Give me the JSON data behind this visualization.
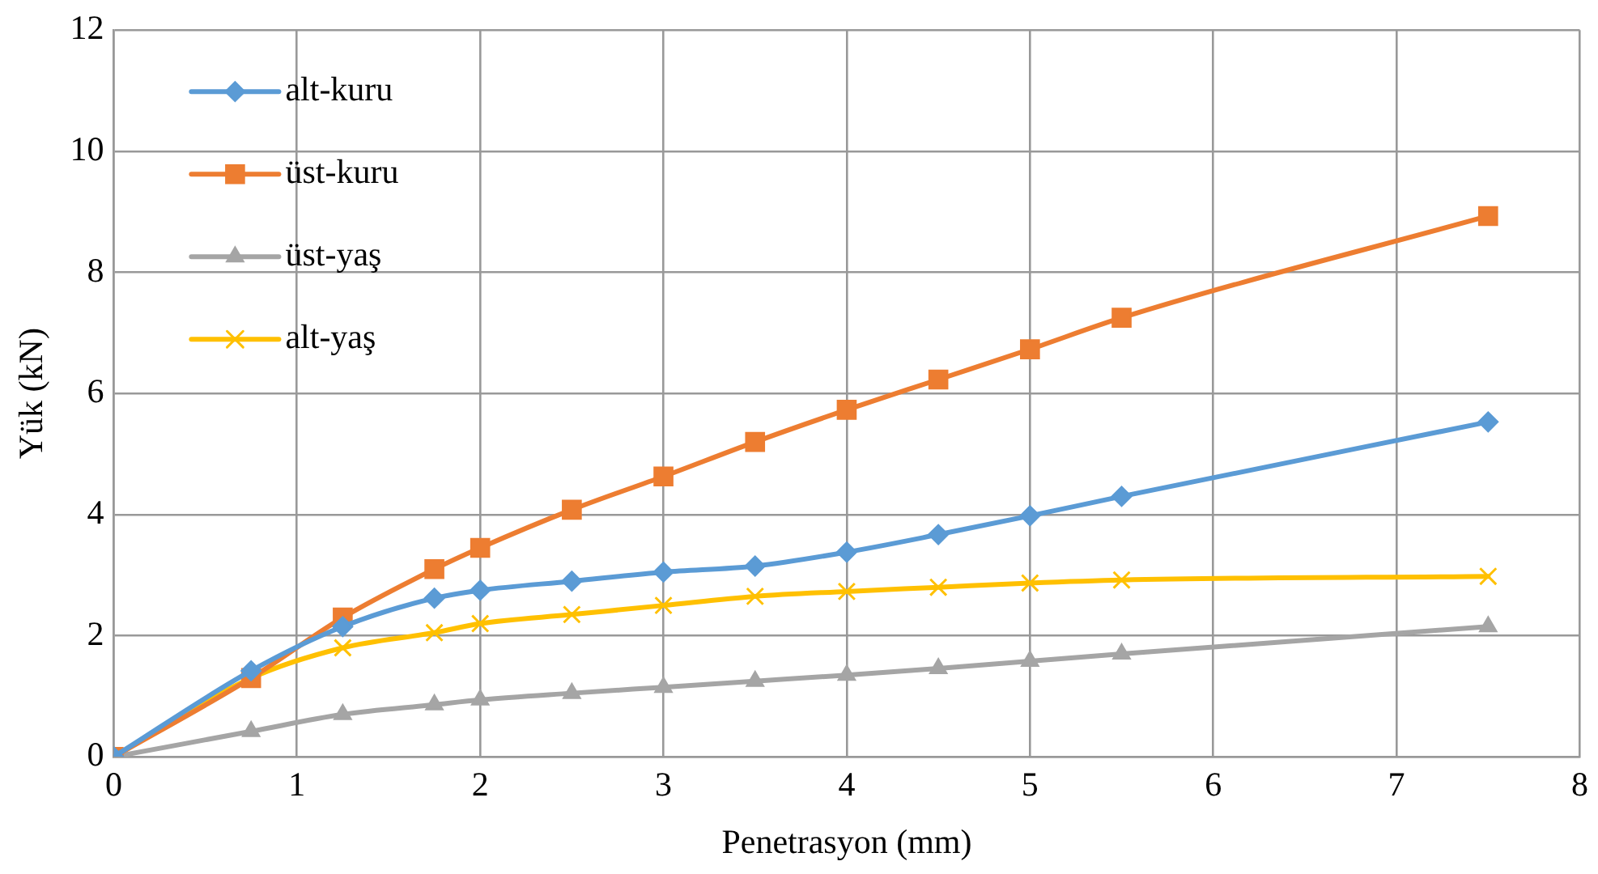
{
  "chart_data": {
    "type": "line",
    "xlabel": "Penetrasyon (mm)",
    "ylabel": "Yük (kN)",
    "x": [
      0,
      0.75,
      1.25,
      1.75,
      2,
      2.5,
      3,
      3.5,
      4,
      4.5,
      5,
      5.5,
      7.5
    ],
    "xlim": [
      0,
      8
    ],
    "xticks": [
      0,
      1,
      2,
      3,
      4,
      5,
      6,
      7,
      8
    ],
    "ylim": [
      0,
      12
    ],
    "yticks": [
      0,
      2,
      4,
      6,
      8,
      10,
      12
    ],
    "grid": true,
    "legend": "top left",
    "line_style": "solid",
    "series": [
      {
        "name": "alt-kuru",
        "color": "#5b9bd5",
        "marker": "diamond",
        "values": [
          0,
          1.42,
          2.15,
          2.62,
          2.75,
          2.9,
          3.05,
          3.15,
          3.38,
          3.67,
          3.98,
          4.3,
          5.53
        ]
      },
      {
        "name": "üst-kuru",
        "color": "#ed7d31",
        "marker": "square",
        "values": [
          0,
          1.3,
          2.3,
          3.1,
          3.45,
          4.08,
          4.63,
          5.2,
          5.73,
          6.23,
          6.73,
          7.25,
          8.93
        ]
      },
      {
        "name": "üst-yaş",
        "color": "#a5a5a5",
        "marker": "triangle",
        "values": [
          0,
          0.42,
          0.7,
          0.86,
          0.94,
          1.05,
          1.15,
          1.25,
          1.35,
          1.46,
          1.58,
          1.7,
          2.15
        ]
      },
      {
        "name": "alt-yaş",
        "color": "#ffc000",
        "marker": "cross",
        "values": [
          0,
          1.3,
          1.8,
          2.05,
          2.2,
          2.35,
          2.5,
          2.65,
          2.73,
          2.8,
          2.87,
          2.92,
          2.98
        ]
      }
    ]
  }
}
